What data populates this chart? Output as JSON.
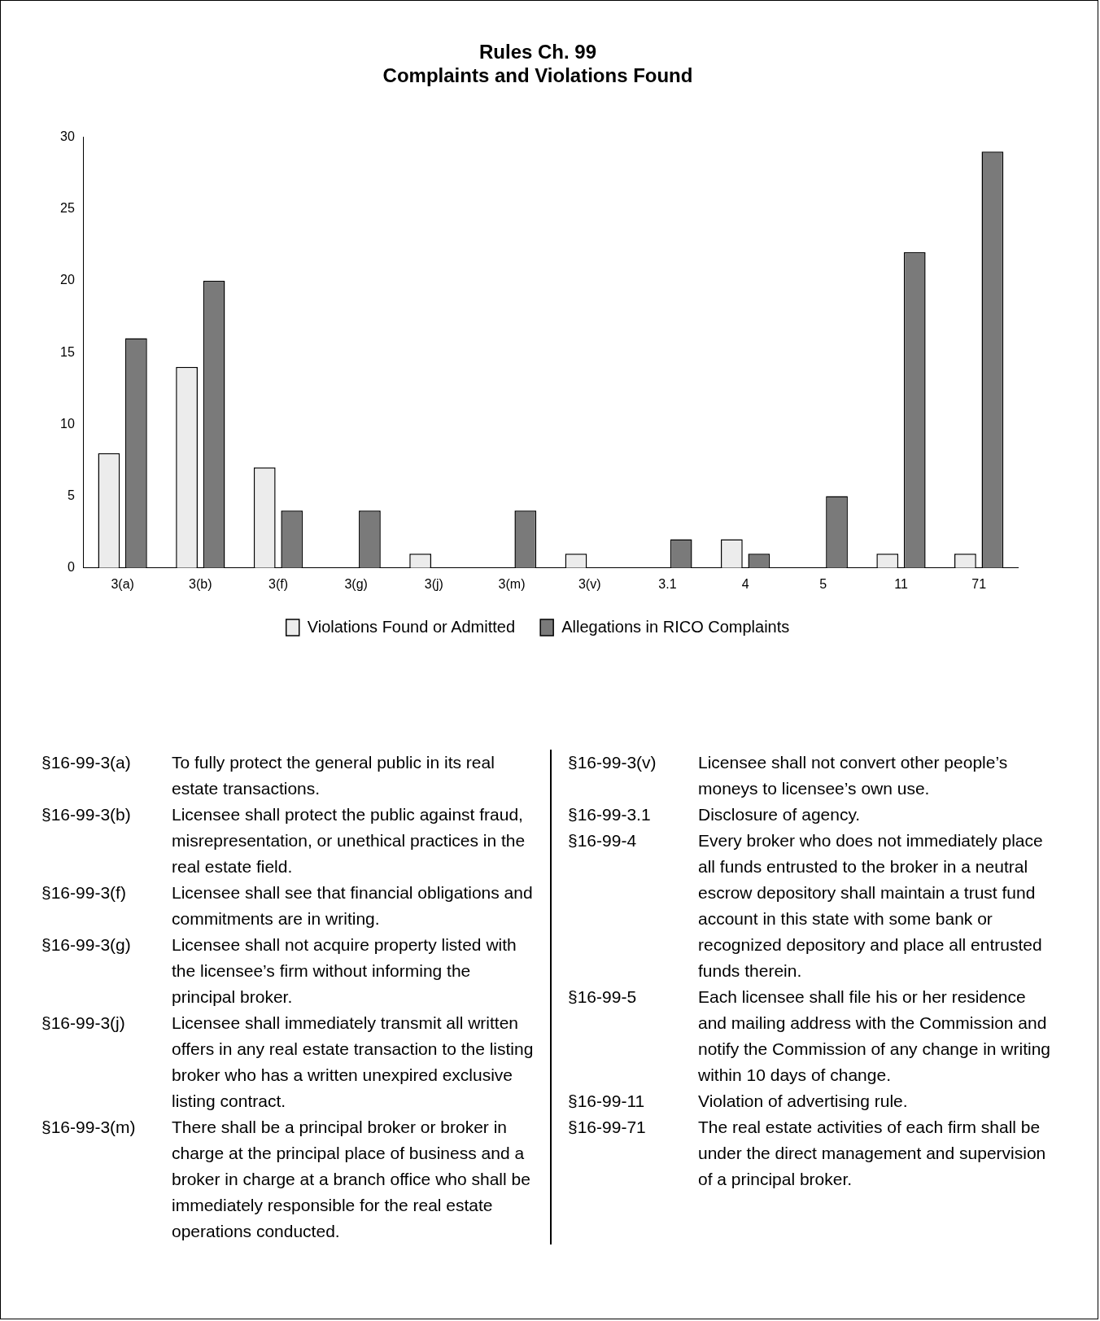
{
  "chart_data": {
    "type": "bar",
    "title": "Rules Ch. 99\nComplaints and Violations Found",
    "categories": [
      "3(a)",
      "3(b)",
      "3(f)",
      "3(g)",
      "3(j)",
      "3(m)",
      "3(v)",
      "3.1",
      "4",
      "5",
      "11",
      "71"
    ],
    "series": [
      {
        "name": "Violations Found or Admitted",
        "color": "#ececec",
        "values": [
          8,
          14,
          7,
          0,
          1,
          0,
          1,
          0,
          2,
          0,
          1,
          1
        ]
      },
      {
        "name": "Allegations in RICO Complaints",
        "color": "#7a7a7a",
        "values": [
          16,
          20,
          4,
          4,
          0,
          4,
          0,
          2,
          1,
          5,
          22,
          29
        ]
      }
    ],
    "ylim": [
      0,
      30
    ],
    "yticks": [
      0,
      5,
      10,
      15,
      20,
      25,
      30
    ],
    "grid": false,
    "legend": "bottom",
    "annotations": [
      "§16-99-3(a) To fully protect the general public in its real estate transactions.",
      "§16-99-3(b) Licensee shall protect the public against fraud, misrepresentation, or unethical practices in the real estate field.",
      "§16-99-3(f) Licensee shall see that financial obligations and commitments are in writing.",
      "§16-99-3(g) Licensee shall not acquire property listed with the licensee’s firm without informing the principal broker.",
      "§16-99-3(j) Licensee shall immediately transmit all written offers in any real estate transaction to the listing broker who has a written unexpired exclusive listing contract.",
      "§16-99-3(m) There shall be a principal broker or broker in charge at the principal place of business and a broker in charge at a branch office who shall be immediately responsible for the real estate operations conducted.",
      "§16-99-3(v) Licensee shall not convert other people’s moneys to licensee’s own use.",
      "§16-99-3.1 Disclosure of agency.",
      "§16-99-4 Every broker who does not immediately place all funds entrusted to the broker in a neutral escrow depository shall maintain a trust fund account in this state with some bank or recognized depository and place all entrusted funds therein.",
      "§16-99-5 Each licensee shall file his or her residence and mailing address with the Commission and notify the Commission of any change in writing within 10 days of change.",
      "§16-99-11 Violation of advertising rule.",
      "§16-99-71 The real estate activities of each firm shall be under the direct management and supervision of a principal broker."
    ]
  }
}
